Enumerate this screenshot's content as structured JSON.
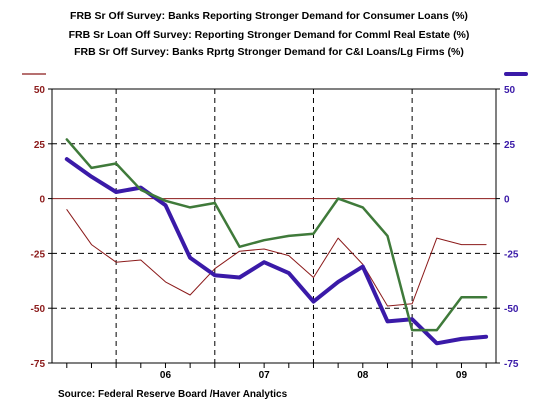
{
  "chart_data": {
    "type": "line",
    "titles": [
      {
        "text": "FRB Sr Off Survey: Banks Reporting Stronger Demand for Consumer Loans (%)",
        "color": "#8b1a1a"
      },
      {
        "text": "FRB Sr Loan Off Survey: Reporting Stronger Demand for Comml Real Estate (%)",
        "color": "#3a1aa8"
      },
      {
        "text": "FRB Sr Off Survey: Banks Rprtg Stronger Demand for C&I Loans/Lg Firms (%)",
        "color": "#3f7a3a"
      }
    ],
    "source": "Source:  Federal Reserve Board /Haver Analytics",
    "x_tick_labels": [
      "06",
      "07",
      "08",
      "09"
    ],
    "ylim": [
      -75,
      50
    ],
    "y_ticks_left": [
      "50",
      "25",
      "0",
      "-25",
      "-50",
      "-75"
    ],
    "y_ticks_right": [
      "50",
      "25",
      "0",
      "-25",
      "-50",
      "-75"
    ],
    "y_tick_values": [
      50,
      25,
      0,
      -25,
      -50,
      -75
    ],
    "zero_line_color": "#8b1a1a",
    "grid": "dashed",
    "series": [
      {
        "color": "#8b1a1a",
        "width": 1,
        "x": [
          2005.0,
          2005.25,
          2005.5,
          2005.75,
          2006.0,
          2006.25,
          2006.5,
          2006.75,
          2007.0,
          2007.25,
          2007.5,
          2007.75,
          2008.0,
          2008.25,
          2008.5,
          2008.75,
          2009.0,
          2009.25
        ],
        "values": [
          -5,
          -21,
          -29,
          -28,
          -38,
          -44,
          -32,
          -24,
          -23,
          -26,
          -36,
          -18,
          -30,
          -49,
          -48,
          -18,
          -21,
          -21
        ]
      },
      {
        "color": "#3a1aa8",
        "width": 4,
        "x": [
          2005.0,
          2005.25,
          2005.5,
          2005.75,
          2006.0,
          2006.25,
          2006.5,
          2006.75,
          2007.0,
          2007.25,
          2007.5,
          2007.75,
          2008.0,
          2008.25,
          2008.5,
          2008.75,
          2009.0,
          2009.25
        ],
        "values": [
          18,
          10,
          3,
          5,
          -3,
          -27,
          -35,
          -36,
          -29,
          -34,
          -47,
          -38,
          -31,
          -56,
          -55,
          -66,
          -64,
          -63
        ]
      },
      {
        "color": "#3f7a3a",
        "width": 2.5,
        "x": [
          2005.0,
          2005.25,
          2005.5,
          2005.75,
          2006.0,
          2006.25,
          2006.5,
          2006.75,
          2007.0,
          2007.25,
          2007.5,
          2007.75,
          2008.0,
          2008.25,
          2008.5,
          2008.75,
          2009.0,
          2009.25
        ],
        "values": [
          27,
          14,
          16,
          4,
          -1,
          -4,
          -2,
          -22,
          -19,
          -17,
          -16,
          0,
          -4,
          -17,
          -60,
          -60,
          -45,
          -45
        ]
      }
    ]
  }
}
